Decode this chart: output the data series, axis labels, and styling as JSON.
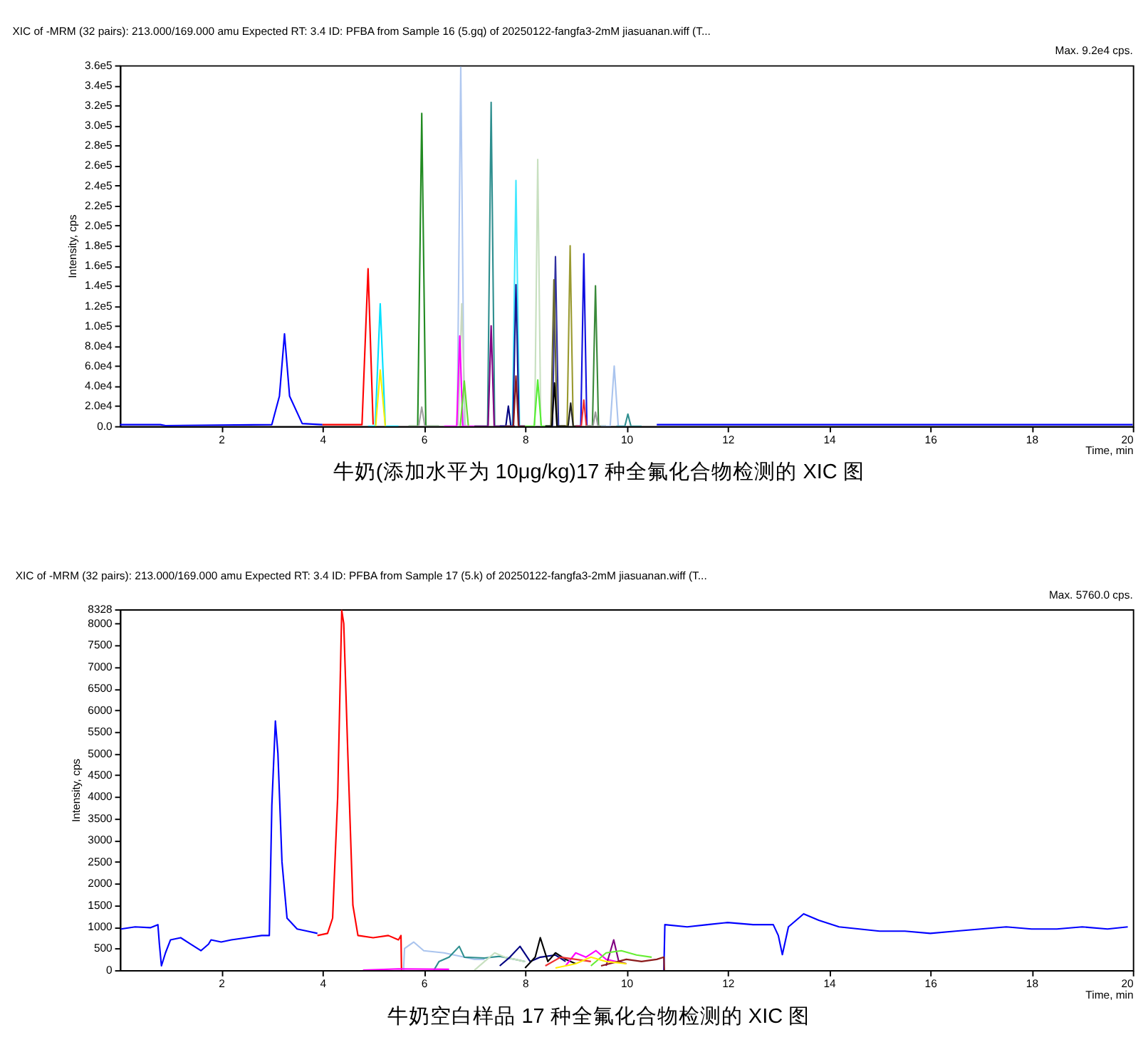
{
  "chart_data": [
    {
      "type": "line",
      "title": "XIC of -MRM (32 pairs): 213.000/169.000 amu Expected RT: 3.4 ID: PFBA from Sample 16 (5.gq) of 20250122-fangfa3-2mM jiasuanan.wiff (T...",
      "xlabel": "Time, min",
      "ylabel": "Intensity, cps",
      "annotations": [
        "Max. 9.2e4 cps.",
        "牛奶(添加水平为 10μg/kg)17 种全氟化合物检测的 XIC 图"
      ],
      "xlim": [
        0,
        20
      ],
      "xticks": [
        2,
        4,
        6,
        8,
        10,
        12,
        14,
        16,
        18,
        20
      ],
      "ylim": [
        0,
        360000
      ],
      "yticks": [
        {
          "value": 0,
          "label": "0.0"
        },
        {
          "value": 20000,
          "label": "2.0e4"
        },
        {
          "value": 40000,
          "label": "4.0e4"
        },
        {
          "value": 60000,
          "label": "6.0e4"
        },
        {
          "value": 80000,
          "label": "8.0e4"
        },
        {
          "value": 100000,
          "label": "1.0e5"
        },
        {
          "value": 120000,
          "label": "1.2e5"
        },
        {
          "value": 140000,
          "label": "1.4e5"
        },
        {
          "value": 160000,
          "label": "1.6e5"
        },
        {
          "value": 180000,
          "label": "1.8e5"
        },
        {
          "value": 200000,
          "label": "2.0e5"
        },
        {
          "value": 220000,
          "label": "2.2e5"
        },
        {
          "value": 240000,
          "label": "2.4e5"
        },
        {
          "value": 260000,
          "label": "2.6e5"
        },
        {
          "value": 280000,
          "label": "2.8e5"
        },
        {
          "value": 300000,
          "label": "3.0e5"
        },
        {
          "value": 320000,
          "label": "3.2e5"
        },
        {
          "value": 340000,
          "label": "3.4e5"
        },
        {
          "value": 360000,
          "label": "3.6e5"
        }
      ],
      "grid": false,
      "marker": "none",
      "line_style": "solid",
      "series": [
        {
          "color": "#0000ff",
          "x": [
            0,
            0.8,
            0.9,
            3.0,
            3.15,
            3.25,
            3.35,
            3.6,
            4.0,
            4.01,
            10.6,
            20
          ],
          "values": [
            1500,
            1500,
            500,
            1500,
            30000,
            92000,
            30000,
            2500,
            1500,
            null,
            1500,
            1500
          ]
        },
        {
          "color": "#ff0000",
          "x": [
            4.0,
            4.78,
            4.9,
            5.0
          ],
          "values": [
            1500,
            1500,
            157000,
            1500
          ]
        },
        {
          "color": "#00e0ff",
          "x": [
            4.9,
            5.04,
            5.14,
            5.24,
            5.5
          ],
          "values": [
            0,
            0,
            122000,
            0,
            0
          ]
        },
        {
          "color": "#ffee00",
          "x": [
            5.05,
            5.14,
            5.24
          ],
          "values": [
            0,
            56000,
            0
          ]
        },
        {
          "color": "#228b22",
          "x": [
            5.7,
            5.88,
            5.96,
            6.04,
            6.3
          ],
          "values": [
            0,
            0,
            312000,
            0,
            0
          ]
        },
        {
          "color": "#a0a0a0",
          "x": [
            5.7,
            5.9,
            5.96,
            6.02,
            6.3
          ],
          "values": [
            0,
            0,
            19000,
            0,
            0
          ]
        },
        {
          "color": "#b0c8f0",
          "x": [
            6.4,
            6.66,
            6.73,
            6.8,
            7.0
          ],
          "values": [
            0,
            0,
            358000,
            0,
            0
          ]
        },
        {
          "color": "#c8d8c0",
          "x": [
            6.4,
            6.68,
            6.75,
            6.82,
            7.0
          ],
          "values": [
            0,
            0,
            122000,
            0,
            0
          ]
        },
        {
          "color": "#ff00ff",
          "x": [
            6.4,
            6.65,
            6.71,
            6.77,
            7.0
          ],
          "values": [
            0,
            0,
            90000,
            0,
            0
          ]
        },
        {
          "color": "#66dd33",
          "x": [
            6.72,
            6.8,
            6.88
          ],
          "values": [
            0,
            45000,
            0
          ]
        },
        {
          "color": "#2f8f8f",
          "x": [
            7.0,
            7.26,
            7.33,
            7.4,
            7.6
          ],
          "values": [
            0,
            0,
            323000,
            0,
            0
          ]
        },
        {
          "color": "#800080",
          "x": [
            7.0,
            7.27,
            7.33,
            7.39,
            7.6
          ],
          "values": [
            0,
            0,
            100000,
            0,
            0
          ]
        },
        {
          "color": "#000080",
          "x": [
            7.5,
            7.62,
            7.67,
            7.72,
            7.8
          ],
          "values": [
            0,
            0,
            20000,
            0,
            0
          ]
        },
        {
          "color": "#40e8ff",
          "x": [
            7.6,
            7.75,
            7.82,
            7.89,
            8.0
          ],
          "values": [
            0,
            0,
            245000,
            0,
            0
          ]
        },
        {
          "color": "#1a1a90",
          "x": [
            7.6,
            7.76,
            7.82,
            7.88,
            8.0
          ],
          "values": [
            0,
            0,
            141000,
            0,
            0
          ]
        },
        {
          "color": "#8b1a1a",
          "x": [
            7.6,
            7.77,
            7.82,
            7.87,
            8.0
          ],
          "values": [
            0,
            0,
            50000,
            0,
            0
          ]
        },
        {
          "color": "#c8e0c0",
          "x": [
            8.0,
            8.19,
            8.25,
            8.31,
            8.5
          ],
          "values": [
            0,
            0,
            266000,
            0,
            0
          ]
        },
        {
          "color": "#55ee33",
          "x": [
            8.0,
            8.18,
            8.25,
            8.32,
            8.5
          ],
          "values": [
            0,
            0,
            46000,
            0,
            0
          ]
        },
        {
          "color": "#3030a0",
          "x": [
            8.4,
            8.54,
            8.6,
            8.66,
            8.8
          ],
          "values": [
            0,
            0,
            169000,
            0,
            0
          ]
        },
        {
          "color": "#6b6b30",
          "x": [
            8.4,
            8.51,
            8.57,
            8.63,
            8.8
          ],
          "values": [
            0,
            0,
            146000,
            0,
            0
          ]
        },
        {
          "color": "#000000",
          "x": [
            8.4,
            8.53,
            8.58,
            8.63,
            8.8
          ],
          "values": [
            0,
            0,
            43000,
            0,
            0
          ]
        },
        {
          "color": "#9a9a30",
          "x": [
            8.7,
            8.83,
            8.89,
            8.95,
            9.1
          ],
          "values": [
            0,
            0,
            180000,
            0,
            0
          ]
        },
        {
          "color": "#202020",
          "x": [
            8.7,
            8.85,
            8.9,
            8.95,
            9.1
          ],
          "values": [
            0,
            0,
            23000,
            0,
            0
          ]
        },
        {
          "color": "#1010e0",
          "x": [
            9.0,
            9.1,
            9.16,
            9.22,
            9.3
          ],
          "values": [
            0,
            0,
            172000,
            0,
            0
          ]
        },
        {
          "color": "#ee3030",
          "x": [
            9.0,
            9.11,
            9.16,
            9.21,
            9.3
          ],
          "values": [
            0,
            0,
            26000,
            0,
            0
          ]
        },
        {
          "color": "#3a8a3a",
          "x": [
            9.2,
            9.33,
            9.39,
            9.45,
            9.6
          ],
          "values": [
            0,
            0,
            140000,
            0,
            0
          ]
        },
        {
          "color": "#999999",
          "x": [
            9.2,
            9.34,
            9.39,
            9.44,
            9.6
          ],
          "values": [
            0,
            0,
            14000,
            0,
            0
          ]
        },
        {
          "color": "#aac4ee",
          "x": [
            9.5,
            9.68,
            9.76,
            9.84,
            10.0
          ],
          "values": [
            0,
            0,
            60000,
            0,
            0
          ]
        },
        {
          "color": "#2f8f8f",
          "x": [
            9.8,
            9.97,
            10.03,
            10.09,
            10.3
          ],
          "values": [
            0,
            0,
            12000,
            0,
            0
          ]
        }
      ]
    },
    {
      "type": "line",
      "title": "XIC of -MRM (32 pairs): 213.000/169.000 amu Expected RT: 3.4 ID: PFBA from Sample 17 (5.k) of 20250122-fangfa3-2mM jiasuanan.wiff (T...",
      "xlabel": "Time, min",
      "ylabel": "Intensity, cps",
      "annotations": [
        "Max. 5760.0 cps.",
        "牛奶空白样品 17 种全氟化合物检测的 XIC 图"
      ],
      "xlim": [
        0,
        20
      ],
      "xticks": [
        2,
        4,
        6,
        8,
        10,
        12,
        14,
        16,
        18,
        20
      ],
      "ylim": [
        0,
        8328
      ],
      "yticks": [
        0,
        500,
        1000,
        1500,
        2000,
        2500,
        3000,
        3500,
        4000,
        4500,
        5000,
        5500,
        6000,
        6500,
        7000,
        7500,
        8000,
        8328
      ],
      "grid": false,
      "marker": "none",
      "line_style": "solid",
      "series": [
        {
          "color": "#0000ff",
          "x": [
            0.02,
            0.3,
            0.6,
            0.75,
            0.78,
            0.82,
            0.9,
            1.0,
            1.2,
            1.4,
            1.6,
            1.75,
            1.8,
            2.0,
            2.2,
            2.5,
            2.8,
            2.95,
            3.0,
            3.07,
            3.12,
            3.2,
            3.3,
            3.5,
            3.7,
            3.9,
            3.91,
            10.74,
            10.76,
            11.2,
            11.6,
            12.0,
            12.5,
            12.9,
            13.0,
            13.08,
            13.2,
            13.5,
            13.8,
            14.2,
            14.6,
            15.0,
            15.5,
            16.0,
            16.5,
            17.0,
            17.5,
            18.0,
            18.5,
            19.0,
            19.5,
            19.9
          ],
          "values": [
            950,
            1000,
            980,
            1050,
            600,
            100,
            400,
            700,
            750,
            600,
            450,
            600,
            700,
            650,
            700,
            750,
            800,
            800,
            3800,
            5750,
            5000,
            2500,
            1200,
            950,
            900,
            850,
            null,
            0,
            1050,
            1000,
            1050,
            1100,
            1050,
            1050,
            800,
            360,
            1000,
            1300,
            1150,
            1000,
            950,
            900,
            900,
            850,
            900,
            950,
            1000,
            950,
            950,
            1000,
            950,
            1000
          ]
        },
        {
          "color": "#ff0000",
          "x": [
            3.9,
            4.1,
            4.2,
            4.3,
            4.38,
            4.42,
            4.5,
            4.6,
            4.7,
            5.0,
            5.3,
            5.5,
            5.55,
            5.56
          ],
          "values": [
            800,
            850,
            1200,
            4000,
            8300,
            8000,
            5000,
            1500,
            800,
            750,
            800,
            700,
            800,
            0
          ]
        },
        {
          "color": "#aac4ee",
          "x": [
            5.6,
            5.62,
            5.8,
            6.0,
            6.4,
            6.6,
            6.8,
            7.0,
            7.2
          ],
          "values": [
            0,
            500,
            650,
            450,
            400,
            350,
            300,
            250,
            250
          ]
        },
        {
          "color": "#2f8f8f",
          "x": [
            6.2,
            6.3,
            6.5,
            6.7,
            6.8,
            7.2,
            7.5,
            7.8,
            8.0
          ],
          "values": [
            0,
            200,
            300,
            550,
            300,
            280,
            320,
            250,
            200
          ]
        },
        {
          "color": "#c8e0c0",
          "x": [
            7.0,
            7.2,
            7.4,
            7.6,
            7.8,
            8.0
          ],
          "values": [
            0,
            200,
            400,
            300,
            250,
            200
          ]
        },
        {
          "color": "#000080",
          "x": [
            7.5,
            7.7,
            7.9,
            8.1,
            8.3,
            8.6,
            8.8
          ],
          "values": [
            100,
            300,
            550,
            200,
            300,
            350,
            200
          ]
        },
        {
          "color": "#000000",
          "x": [
            8.0,
            8.2,
            8.3,
            8.45,
            8.6,
            8.8,
            9.0
          ],
          "values": [
            50,
            300,
            750,
            200,
            400,
            250,
            150
          ]
        },
        {
          "color": "#ff00ff",
          "x": [
            8.8,
            9.0,
            9.2,
            9.4,
            9.6,
            9.8
          ],
          "values": [
            100,
            400,
            300,
            450,
            250,
            200
          ]
        },
        {
          "color": "#800080",
          "x": [
            9.6,
            9.75,
            9.85,
            10.0
          ],
          "values": [
            100,
            700,
            200,
            150
          ]
        },
        {
          "color": "#66ee33",
          "x": [
            9.3,
            9.6,
            9.9,
            10.2,
            10.5
          ],
          "values": [
            100,
            400,
            450,
            350,
            300
          ]
        },
        {
          "color": "#8b1a1a",
          "x": [
            9.5,
            10.0,
            10.3,
            10.6,
            10.74,
            10.75
          ],
          "values": [
            100,
            250,
            200,
            250,
            300,
            0
          ]
        },
        {
          "color": "#ee3030",
          "x": [
            8.4,
            8.7,
            9.0,
            9.3
          ],
          "values": [
            100,
            300,
            250,
            200
          ]
        },
        {
          "color": "#ffee00",
          "x": [
            8.6,
            9.0,
            9.3,
            9.6,
            10.0
          ],
          "values": [
            50,
            150,
            300,
            200,
            150
          ]
        },
        {
          "color": "#ff00ff",
          "x": [
            4.8,
            5.5,
            6.5
          ],
          "values": [
            0,
            30,
            20
          ]
        }
      ]
    }
  ]
}
